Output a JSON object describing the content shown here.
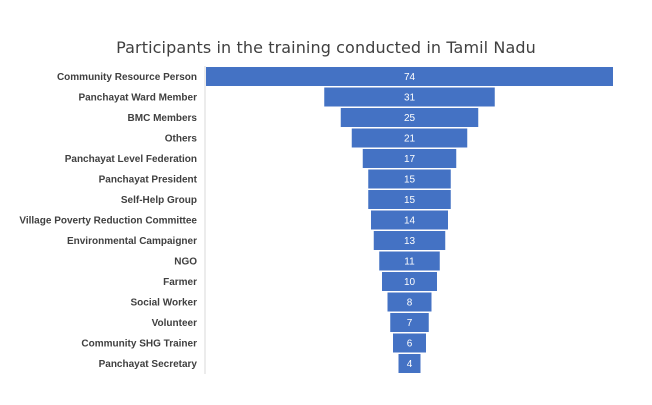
{
  "chart_data": {
    "type": "bar",
    "orientation": "horizontal-funnel",
    "title": "Participants in the training conducted in Tamil Nadu",
    "categories": [
      "Community Resource Person",
      "Panchayat Ward Member",
      "BMC Members",
      "Others",
      "Panchayat Level Federation",
      "Panchayat President",
      "Self-Help Group",
      "Village Poverty Reduction Committee",
      "Environmental Campaigner",
      "NGO",
      "Farmer",
      "Social Worker",
      "Volunteer",
      "Community SHG Trainer",
      "Panchayat Secretary"
    ],
    "values": [
      74,
      31,
      25,
      21,
      17,
      15,
      15,
      14,
      13,
      11,
      10,
      8,
      7,
      6,
      4
    ],
    "bar_color": "#4472C4",
    "label_color": "#ffffff",
    "grid": false,
    "legend": "none"
  }
}
